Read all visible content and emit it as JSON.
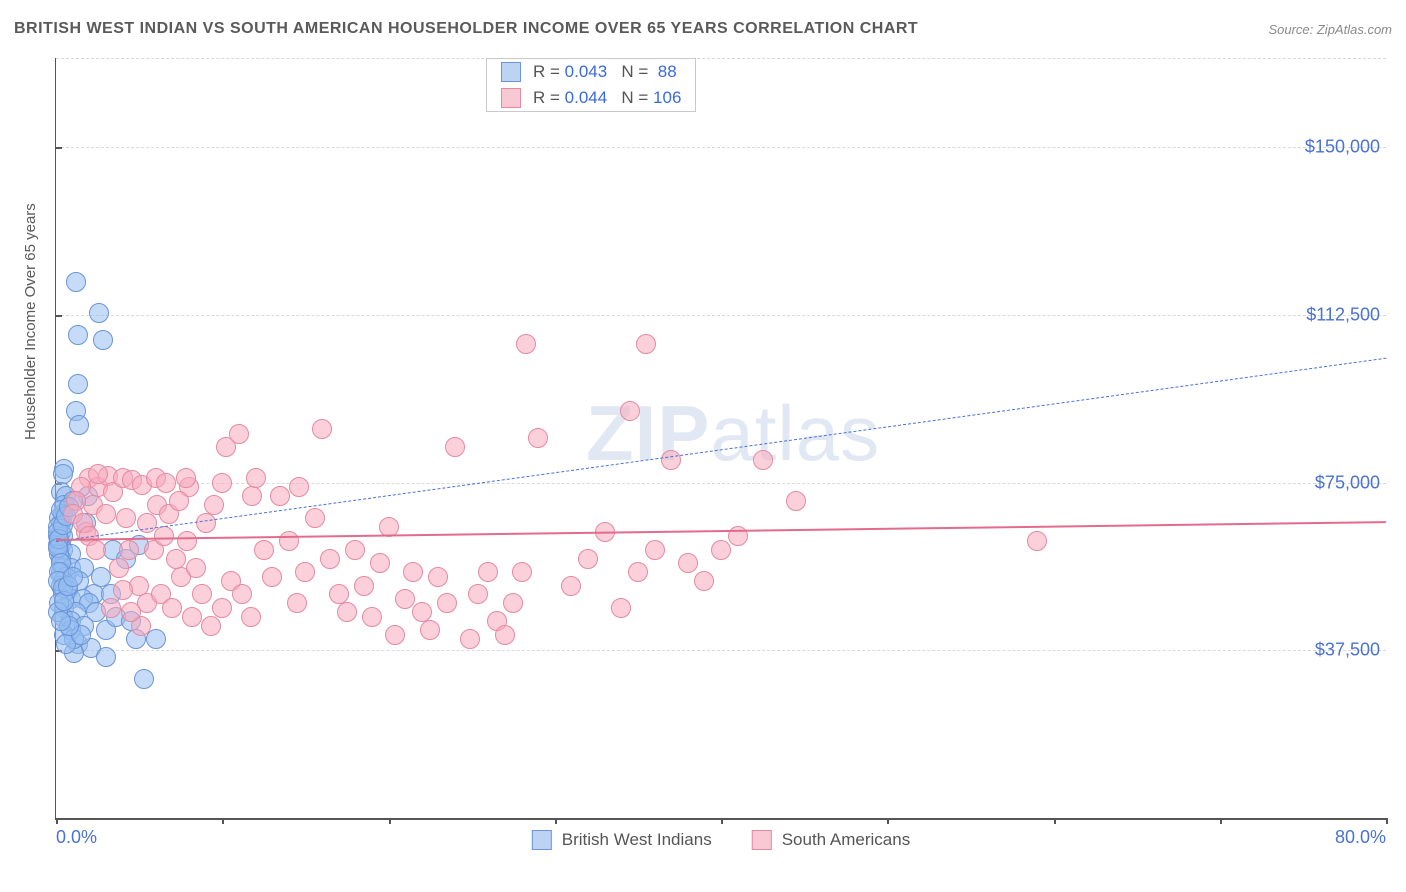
{
  "title": "BRITISH WEST INDIAN VS SOUTH AMERICAN HOUSEHOLDER INCOME OVER 65 YEARS CORRELATION CHART",
  "source": "Source: ZipAtlas.com",
  "watermark_zip": "ZIP",
  "watermark_atlas": "atlas",
  "chart": {
    "type": "scatter",
    "yaxis_title": "Householder Income Over 65 years",
    "xlim": [
      0,
      80
    ],
    "ylim": [
      0,
      170000
    ],
    "xticks_pct": [
      0,
      10,
      20,
      30,
      40,
      50,
      60,
      70,
      80
    ],
    "xlabels": {
      "0": "0.0%",
      "80": "80.0%"
    },
    "ygrid": [
      37500,
      75000,
      112500,
      150000
    ],
    "ylabels": {
      "37500": "$37,500",
      "75000": "$75,000",
      "112500": "$112,500",
      "150000": "$150,000"
    },
    "marker_radius": 10,
    "background_color": "#ffffff",
    "grid_color": "#d9d9d9",
    "axis_color": "#555555"
  },
  "legend_top": {
    "rows": [
      {
        "swatch_fill": "#bcd4f2",
        "swatch_border": "#6b95d8",
        "r_label": "R =",
        "r_val": "0.043",
        "n_label": "N =",
        "n_val": "88"
      },
      {
        "swatch_fill": "#f8c8d4",
        "swatch_border": "#e58aa2",
        "r_label": "R =",
        "r_val": "0.044",
        "n_label": "N =",
        "n_val": "106"
      }
    ]
  },
  "legend_bottom": [
    {
      "swatch_fill": "#bcd4f2",
      "swatch_border": "#6b95d8",
      "label": "British West Indians"
    },
    {
      "swatch_fill": "#f8c8d4",
      "swatch_border": "#e58aa2",
      "label": "South Americans"
    }
  ],
  "series": [
    {
      "name": "British West Indians",
      "fill": "rgba(150,190,240,0.55)",
      "stroke": "#6b95d8",
      "trend": {
        "color": "#4a72d4",
        "dash": true,
        "width": 1.5,
        "y_at_xmin": 62000,
        "y_at_xmax": 103000
      },
      "points": [
        [
          1.2,
          120000
        ],
        [
          2.6,
          113000
        ],
        [
          1.3,
          108000
        ],
        [
          2.8,
          107000
        ],
        [
          1.3,
          97000
        ],
        [
          1.2,
          91000
        ],
        [
          1.4,
          88000
        ],
        [
          0.5,
          78000
        ],
        [
          0.4,
          77000
        ],
        [
          0.3,
          73000
        ],
        [
          0.6,
          72000
        ],
        [
          1.9,
          72000
        ],
        [
          0.5,
          70000
        ],
        [
          1.0,
          71000
        ],
        [
          0.4,
          68000
        ],
        [
          0.3,
          66000
        ],
        [
          1.8,
          66000
        ],
        [
          0.3,
          64000
        ],
        [
          0.4,
          63000
        ],
        [
          0.2,
          62000
        ],
        [
          0.3,
          61000
        ],
        [
          0.4,
          60000
        ],
        [
          0.2,
          60000
        ],
        [
          0.9,
          59000
        ],
        [
          0.3,
          58000
        ],
        [
          0.4,
          56000
        ],
        [
          0.9,
          56000
        ],
        [
          1.7,
          56000
        ],
        [
          0.3,
          55000
        ],
        [
          0.6,
          54000
        ],
        [
          0.4,
          53000
        ],
        [
          1.4,
          53000
        ],
        [
          0.3,
          52000
        ],
        [
          0.7,
          51000
        ],
        [
          2.3,
          50000
        ],
        [
          3.3,
          50000
        ],
        [
          0.4,
          50000
        ],
        [
          0.9,
          49000
        ],
        [
          1.6,
          49000
        ],
        [
          2.0,
          48000
        ],
        [
          0.5,
          47000
        ],
        [
          1.2,
          46000
        ],
        [
          2.4,
          46000
        ],
        [
          0.4,
          45000
        ],
        [
          0.9,
          44000
        ],
        [
          1.7,
          43000
        ],
        [
          3.0,
          42000
        ],
        [
          4.8,
          40000
        ],
        [
          1.3,
          39000
        ],
        [
          2.1,
          38000
        ],
        [
          1.1,
          37000
        ],
        [
          3.0,
          36000
        ],
        [
          5.3,
          31000
        ],
        [
          6.0,
          40000
        ],
        [
          3.6,
          45000
        ],
        [
          4.5,
          44000
        ],
        [
          2.7,
          54000
        ],
        [
          3.4,
          60000
        ],
        [
          4.2,
          58000
        ],
        [
          5.0,
          61000
        ],
        [
          0.2,
          59000
        ],
        [
          0.1,
          61000
        ],
        [
          0.1,
          63000
        ],
        [
          0.2,
          67000
        ],
        [
          0.1,
          65000
        ],
        [
          0.3,
          69000
        ],
        [
          0.1,
          64000
        ],
        [
          0.2,
          62500
        ],
        [
          0.1,
          60500
        ],
        [
          0.3,
          57000
        ],
        [
          0.2,
          55000
        ],
        [
          0.1,
          53000
        ],
        [
          0.4,
          51500
        ],
        [
          0.2,
          48000
        ],
        [
          0.1,
          46000
        ],
        [
          0.9,
          42000
        ],
        [
          0.5,
          41000
        ],
        [
          1.1,
          40000
        ],
        [
          0.6,
          39000
        ],
        [
          1.5,
          41000
        ],
        [
          0.8,
          43000
        ],
        [
          0.3,
          44000
        ],
        [
          0.5,
          48500
        ],
        [
          0.7,
          52000
        ],
        [
          1.0,
          54000
        ],
        [
          0.4,
          65500
        ],
        [
          0.6,
          67500
        ],
        [
          0.8,
          69500
        ]
      ]
    },
    {
      "name": "South Americans",
      "fill": "rgba(248,170,190,0.55)",
      "stroke": "#e58aa2",
      "trend": {
        "color": "#e36b8c",
        "dash": false,
        "width": 2.2,
        "y_at_xmin": 62500,
        "y_at_xmax": 66500
      },
      "points": [
        [
          2.0,
          76000
        ],
        [
          2.5,
          74000
        ],
        [
          3.1,
          76500
        ],
        [
          3.4,
          73000
        ],
        [
          4.0,
          76000
        ],
        [
          4.6,
          75500
        ],
        [
          5.2,
          74500
        ],
        [
          6.0,
          76000
        ],
        [
          6.6,
          75000
        ],
        [
          2.2,
          70000
        ],
        [
          3.0,
          68000
        ],
        [
          4.2,
          67000
        ],
        [
          1.8,
          64000
        ],
        [
          2.5,
          77000
        ],
        [
          1.5,
          74000
        ],
        [
          1.2,
          71000
        ],
        [
          1.0,
          68000
        ],
        [
          1.6,
          66000
        ],
        [
          2.0,
          63000
        ],
        [
          2.4,
          60000
        ],
        [
          8.0,
          74000
        ],
        [
          9.0,
          66000
        ],
        [
          9.5,
          70000
        ],
        [
          10.2,
          83000
        ],
        [
          11.0,
          86000
        ],
        [
          11.8,
          72000
        ],
        [
          12.5,
          60000
        ],
        [
          13.0,
          54000
        ],
        [
          13.5,
          72000
        ],
        [
          14.0,
          62000
        ],
        [
          14.5,
          48000
        ],
        [
          15.0,
          55000
        ],
        [
          15.6,
          67000
        ],
        [
          16.0,
          87000
        ],
        [
          16.5,
          58000
        ],
        [
          17.0,
          50000
        ],
        [
          17.5,
          46000
        ],
        [
          18.0,
          60000
        ],
        [
          18.5,
          52000
        ],
        [
          19.0,
          45000
        ],
        [
          19.5,
          57000
        ],
        [
          20.0,
          65000
        ],
        [
          20.4,
          41000
        ],
        [
          21.0,
          49000
        ],
        [
          21.5,
          55000
        ],
        [
          22.0,
          46000
        ],
        [
          22.5,
          42000
        ],
        [
          23.0,
          54000
        ],
        [
          23.5,
          48000
        ],
        [
          24.0,
          83000
        ],
        [
          24.9,
          40000
        ],
        [
          25.4,
          50000
        ],
        [
          26.0,
          55000
        ],
        [
          26.5,
          44000
        ],
        [
          27.0,
          41000
        ],
        [
          27.5,
          48000
        ],
        [
          28.0,
          55000
        ],
        [
          28.3,
          106000
        ],
        [
          29.0,
          85000
        ],
        [
          31.0,
          52000
        ],
        [
          32.0,
          58000
        ],
        [
          33.0,
          64000
        ],
        [
          34.0,
          47000
        ],
        [
          34.5,
          91000
        ],
        [
          35.0,
          55000
        ],
        [
          35.5,
          106000
        ],
        [
          36.0,
          60000
        ],
        [
          37.0,
          80000
        ],
        [
          38.0,
          57000
        ],
        [
          39.0,
          53000
        ],
        [
          40.0,
          60000
        ],
        [
          41.0,
          63000
        ],
        [
          42.5,
          80000
        ],
        [
          44.5,
          71000
        ],
        [
          59.0,
          62000
        ],
        [
          5.0,
          52000
        ],
        [
          5.5,
          48000
        ],
        [
          6.3,
          50000
        ],
        [
          7.0,
          47000
        ],
        [
          7.5,
          54000
        ],
        [
          8.2,
          45000
        ],
        [
          8.8,
          50000
        ],
        [
          9.3,
          43000
        ],
        [
          10.0,
          47000
        ],
        [
          10.5,
          53000
        ],
        [
          11.2,
          50000
        ],
        [
          11.7,
          45000
        ],
        [
          5.9,
          60000
        ],
        [
          6.5,
          63000
        ],
        [
          7.2,
          58000
        ],
        [
          7.9,
          62000
        ],
        [
          8.4,
          56000
        ],
        [
          3.8,
          56000
        ],
        [
          4.4,
          60000
        ],
        [
          5.1,
          43000
        ],
        [
          10.0,
          75000
        ],
        [
          12.0,
          76000
        ],
        [
          14.6,
          74000
        ],
        [
          7.8,
          76000
        ],
        [
          3.3,
          47000
        ],
        [
          4.0,
          51000
        ],
        [
          4.5,
          46000
        ],
        [
          5.5,
          66000
        ],
        [
          6.1,
          70000
        ],
        [
          6.8,
          68000
        ],
        [
          7.4,
          71000
        ]
      ]
    }
  ]
}
